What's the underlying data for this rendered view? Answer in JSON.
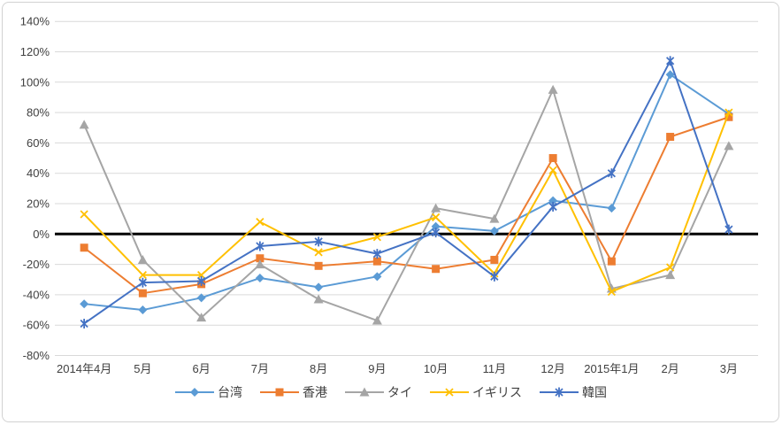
{
  "chart_data": {
    "type": "line",
    "title": "",
    "categories": [
      "2014年4月",
      "5月",
      "6月",
      "7月",
      "8月",
      "9月",
      "10月",
      "11月",
      "12月",
      "2015年1月",
      "2月",
      "3月"
    ],
    "series": [
      {
        "id": "taiwan",
        "name": "台湾",
        "color": "#5B9BD5",
        "marker": "diamond",
        "values": [
          -46,
          -50,
          -42,
          -29,
          -35,
          -28,
          5,
          2,
          22,
          17,
          105,
          79
        ]
      },
      {
        "id": "hongkong",
        "name": "香港",
        "color": "#ED7D31",
        "marker": "square",
        "values": [
          -9,
          -39,
          -33,
          -16,
          -21,
          -18,
          -23,
          -17,
          50,
          -18,
          64,
          77
        ]
      },
      {
        "id": "thailand",
        "name": "タイ",
        "color": "#A5A5A5",
        "marker": "triangle",
        "values": [
          72,
          -17,
          -55,
          -20,
          -43,
          -57,
          17,
          10,
          95,
          -36,
          -27,
          58
        ]
      },
      {
        "id": "uk",
        "name": "イギリス",
        "color": "#FFC000",
        "marker": "x",
        "values": [
          13,
          -27,
          -27,
          8,
          -12,
          -2,
          11,
          -26,
          42,
          -38,
          -22,
          80
        ]
      },
      {
        "id": "korea",
        "name": "韓国",
        "color": "#4472C4",
        "marker": "asterisk",
        "values": [
          -59,
          -32,
          -31,
          -8,
          -5,
          -13,
          1,
          -28,
          18,
          40,
          114,
          3
        ]
      }
    ],
    "xlabel": "",
    "ylabel": "",
    "ylim": [
      -80,
      140
    ],
    "ytick_step": 20,
    "ytick_labels": [
      "140%",
      "120%",
      "100%",
      "80%",
      "60%",
      "40%",
      "20%",
      "0%",
      "-20%",
      "-40%",
      "-60%",
      "-80%"
    ],
    "grid": "horizontal",
    "zero_line": true,
    "legend_position": "bottom"
  },
  "colors": {
    "grid": "#D9D9D9",
    "zero_line": "#000000",
    "tick_text": "#404040",
    "frame_border": "#D2D2D2",
    "background": "#FFFFFF"
  }
}
